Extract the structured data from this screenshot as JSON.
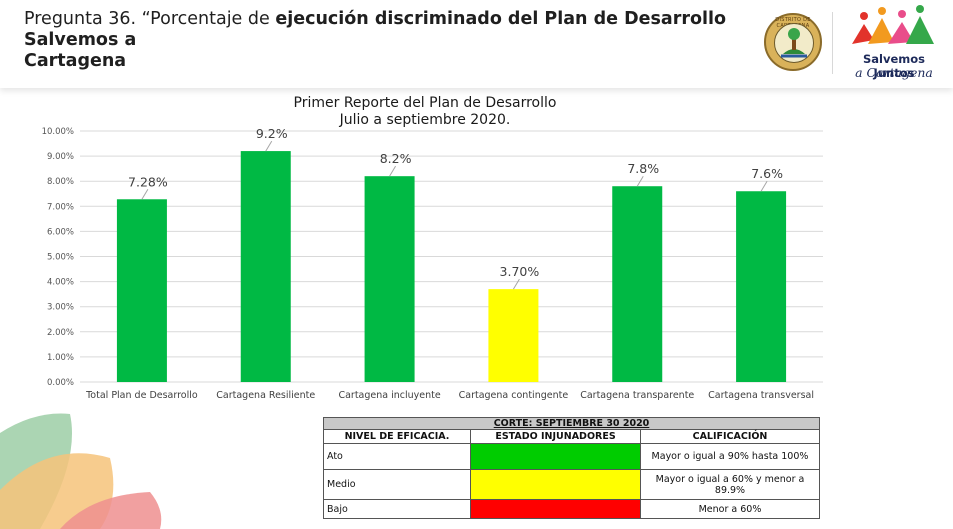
{
  "header": {
    "title_plain": "Pregunta 36. “Porcentaje de ",
    "title_bold_1": "ejecución discriminado del Plan de Desarrollo Salvemos a",
    "title_bold_2": "Cartagena",
    "seal_text": "DISTRITO DE CARTAGENA",
    "brand_line1": "Salvemos Juntos",
    "brand_line2": "a Cartagena"
  },
  "chart_data": {
    "type": "bar",
    "title_line1": "Primer Reporte del Plan de Desarrollo",
    "title_line2": "Julio a septiembre  2020.",
    "categories": [
      "Total Plan de Desarrollo",
      "Cartagena Resiliente",
      "Cartagena incluyente",
      "Cartagena contingente",
      "Cartagena transparente",
      "Cartagena transversal"
    ],
    "values": [
      7.28,
      9.2,
      8.2,
      3.7,
      7.8,
      7.6
    ],
    "data_labels": [
      "7.28%",
      "9.2%",
      "8.2%",
      "3.70%",
      "7.8%",
      "7.6%"
    ],
    "bar_colors": [
      "#00b944",
      "#00b944",
      "#00b944",
      "#ffff00",
      "#00b944",
      "#00b944"
    ],
    "ylim": [
      0,
      10
    ],
    "yticks": [
      "0.00%",
      "1.00%",
      "2.00%",
      "3.00%",
      "4.00%",
      "5.00%",
      "6.00%",
      "7.00%",
      "8.00%",
      "9.00%",
      "10.00%"
    ],
    "grid": true,
    "legend": "none"
  },
  "table": {
    "corte": "CORTE: SEPTIEMBRE 30 2020",
    "headers": [
      "NIVEL DE EFICACIA.",
      "ESTADO INJUNADORES",
      "CALIFICACIÓN"
    ],
    "rows": [
      {
        "nivel": "Ato",
        "color": "#00cc00",
        "calificacion": "Mayor o igual a 90% hasta 100%"
      },
      {
        "nivel": "Medio",
        "color": "#ffff00",
        "calificacion": "Mayor o igual a 60% y menor a 89.9%"
      },
      {
        "nivel": "Bajo",
        "color": "#ff0000",
        "calificacion": "Menor a 60%"
      }
    ]
  }
}
